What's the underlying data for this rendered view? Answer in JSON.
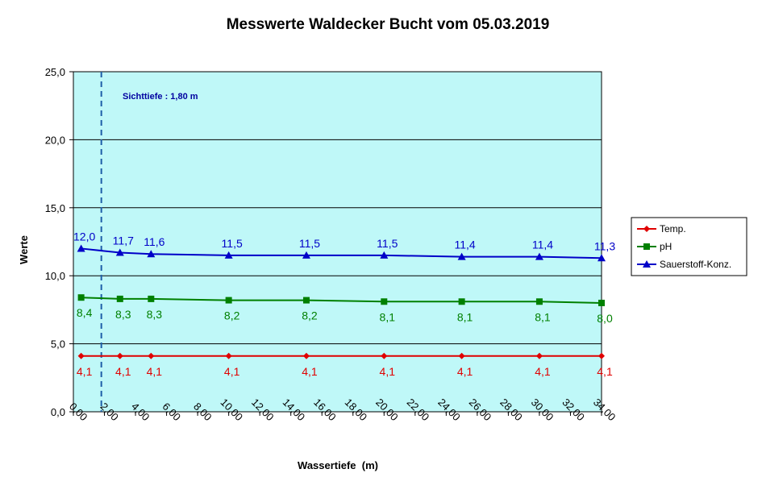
{
  "chart_data": {
    "type": "line",
    "title": "Messwerte Waldecker Bucht vom 05.03.2019",
    "xlabel": "Wassertiefe  (m)",
    "ylabel": "Werte",
    "xlim": [
      0,
      34
    ],
    "ylim": [
      0,
      25
    ],
    "x_ticks": [
      "0,00",
      "2,00",
      "4,00",
      "6,00",
      "8,00",
      "10,00",
      "12,00",
      "14,00",
      "16,00",
      "18,00",
      "20,00",
      "22,00",
      "24,00",
      "26,00",
      "28,00",
      "30,00",
      "32,00",
      "34,00"
    ],
    "y_ticks": [
      "0,0",
      "5,0",
      "10,0",
      "15,0",
      "20,0",
      "25,0"
    ],
    "x": [
      0.5,
      3,
      5,
      10,
      15,
      20,
      25,
      30,
      34
    ],
    "series": [
      {
        "name": "Temp.",
        "color": "#e00000",
        "marker": "diamond",
        "label_pos": "below",
        "values": [
          4.1,
          4.1,
          4.1,
          4.1,
          4.1,
          4.1,
          4.1,
          4.1,
          4.1
        ],
        "labels": [
          "4,1",
          "4,1",
          "4,1",
          "4,1",
          "4,1",
          "4,1",
          "4,1",
          "4,1",
          "4,1"
        ]
      },
      {
        "name": "pH",
        "color": "#008000",
        "marker": "square",
        "label_pos": "below",
        "values": [
          8.4,
          8.3,
          8.3,
          8.2,
          8.2,
          8.1,
          8.1,
          8.1,
          8.0
        ],
        "labels": [
          "8,4",
          "8,3",
          "8,3",
          "8,2",
          "8,2",
          "8,1",
          "8,1",
          "8,1",
          "8,0"
        ]
      },
      {
        "name": "Sauerstoff-Konz.",
        "color": "#0000c8",
        "marker": "triangle",
        "label_pos": "above",
        "values": [
          12.0,
          11.7,
          11.6,
          11.5,
          11.5,
          11.5,
          11.4,
          11.4,
          11.3
        ],
        "labels": [
          "12,0",
          "11,7",
          "11,6",
          "11,5",
          "11,5",
          "11,5",
          "11,4",
          "11,4",
          "11,3"
        ]
      }
    ],
    "annotation": {
      "text": "Sichttiefe : 1,80 m",
      "x": 1.8,
      "color": "#0000a0"
    },
    "plot_background": "#bff8f8",
    "grid": "horizontal",
    "legend_position": "right"
  }
}
